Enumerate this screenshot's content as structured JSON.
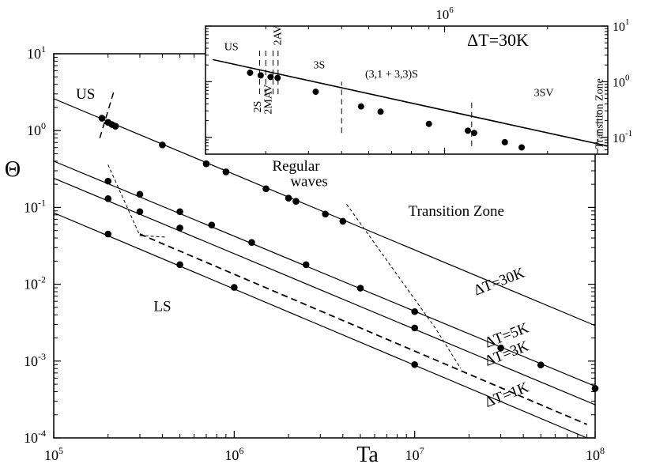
{
  "chart_data": [
    {
      "type": "line",
      "title": "",
      "xlabel": "Ta",
      "ylabel": "Θ",
      "xscale": "log",
      "yscale": "log",
      "xlim": [
        100000,
        100000000
      ],
      "ylim": [
        0.0001,
        10
      ],
      "x_ticks": [
        {
          "value": 100000,
          "base": "10",
          "exp": "5"
        },
        {
          "value": 1000000,
          "base": "10",
          "exp": "6"
        },
        {
          "value": 10000000,
          "base": "10",
          "exp": "7"
        },
        {
          "value": 100000000,
          "base": "10",
          "exp": "8"
        }
      ],
      "y_ticks": [
        {
          "value": 0.0001,
          "base": "10",
          "exp": "-4"
        },
        {
          "value": 0.001,
          "base": "10",
          "exp": "-3"
        },
        {
          "value": 0.01,
          "base": "10",
          "exp": "-2"
        },
        {
          "value": 0.1,
          "base": "10",
          "exp": "-1"
        },
        {
          "value": 1,
          "base": "10",
          "exp": "0"
        },
        {
          "value": 10,
          "base": "10",
          "exp": "1"
        }
      ],
      "grid": false,
      "series": [
        {
          "name": "ΔT=30K",
          "style": "solid",
          "line": [
            [
              100000,
              2.6
            ],
            [
              100000000,
              0.0029
            ]
          ],
          "points": [
            [
              185000,
              1.45
            ],
            [
              200000,
              1.28
            ],
            [
              210000,
              1.2
            ],
            [
              220000,
              1.14
            ],
            [
              400000,
              0.65
            ],
            [
              700000,
              0.37
            ],
            [
              900000,
              0.29
            ],
            [
              1500000,
              0.175
            ],
            [
              2000000,
              0.132
            ],
            [
              2200000,
              0.12
            ],
            [
              3200000,
              0.082
            ],
            [
              4000000,
              0.066
            ]
          ]
        },
        {
          "name": "ΔT=5K",
          "style": "solid",
          "line": [
            [
              100000,
              0.4
            ],
            [
              100000000,
              0.00047
            ]
          ],
          "points": [
            [
              200000,
              0.22
            ],
            [
              300000,
              0.148
            ],
            [
              500000,
              0.088
            ],
            [
              750000,
              0.059
            ],
            [
              1250000,
              0.035
            ],
            [
              2500000,
              0.018
            ],
            [
              5000000,
              0.0089
            ],
            [
              10000000,
              0.0044
            ],
            [
              30000000,
              0.00148
            ],
            [
              100000000,
              0.00044
            ]
          ]
        },
        {
          "name": "ΔT=3K",
          "style": "solid",
          "line": [
            [
              100000,
              0.24
            ],
            [
              100000000,
              0.00027
            ]
          ],
          "points": [
            [
              200000,
              0.13
            ],
            [
              300000,
              0.088
            ],
            [
              500000,
              0.054
            ],
            [
              10000000,
              0.0027
            ],
            [
              50000000,
              0.00089
            ]
          ]
        },
        {
          "name": "",
          "style": "dashed",
          "line": [
            [
              300000,
              0.045
            ],
            [
              90000000,
              0.00015
            ]
          ],
          "points": []
        },
        {
          "name": "ΔT=1K",
          "style": "solid",
          "line": [
            [
              100000,
              0.085
            ],
            [
              90000000,
              0.0001
            ]
          ],
          "points": [
            [
              200000,
              0.045
            ],
            [
              500000,
              0.018
            ],
            [
              1000000,
              0.0091
            ],
            [
              10000000,
              0.0009
            ]
          ]
        }
      ],
      "boundaries": [
        {
          "style": "dashed",
          "points": [
            [
              180000,
              0.8
            ],
            [
              215000,
              3.2
            ]
          ]
        },
        {
          "style": "dashed-fine",
          "points": [
            [
              200000,
              0.36
            ],
            [
              300000,
              0.043
            ],
            [
              300000,
              0.043
            ],
            [
              420000,
              0.041
            ]
          ]
        },
        {
          "style": "dashed-fine",
          "points": [
            [
              4200000,
              0.11
            ],
            [
              13000000,
              0.0027
            ],
            [
              18000000,
              0.0008
            ]
          ]
        }
      ],
      "annotations": [
        {
          "text": "US",
          "x": 150000,
          "y": 2.6
        },
        {
          "text": "LS",
          "x": 400000,
          "y": 0.0045
        },
        {
          "text": "Regular",
          "x": 2200000,
          "y": 0.3
        },
        {
          "text": "waves",
          "x": 2600000,
          "y": 0.19
        },
        {
          "text": "Transition Zone",
          "x": 17000000,
          "y": 0.078
        },
        {
          "text": "ΔT=30K",
          "x": 30000000,
          "y": 0.0095,
          "rotate": -21
        },
        {
          "text": "ΔT=5K",
          "x": 33000000,
          "y": 0.0019,
          "rotate": -21
        },
        {
          "text": "ΔT=3K",
          "x": 33000000,
          "y": 0.0011,
          "rotate": -21
        },
        {
          "text": "ΔT=1K",
          "x": 33000000,
          "y": 0.00032,
          "rotate": -21
        }
      ]
    },
    {
      "type": "line",
      "title": "ΔT=30K",
      "xscale": "log",
      "yscale": "log",
      "xlim": [
        200000,
        3000000
      ],
      "ylim": [
        0.05,
        10
      ],
      "x_ticks": [
        {
          "value": 1000000,
          "base": "10",
          "exp": "6"
        }
      ],
      "y_ticks": [
        {
          "value": 0.1,
          "base": "10",
          "exp": "-1"
        },
        {
          "value": 1,
          "base": "10",
          "exp": "0"
        },
        {
          "value": 10,
          "base": "10",
          "exp": "1"
        }
      ],
      "grid": false,
      "series": [
        {
          "name": "",
          "style": "solid",
          "line": [
            [
              210000,
              2.5
            ],
            [
              3000000,
              0.07
            ]
          ],
          "points": [
            [
              270000,
              1.45
            ],
            [
              290000,
              1.3
            ],
            [
              310000,
              1.22
            ],
            [
              325000,
              1.17
            ],
            [
              420000,
              0.66
            ],
            [
              570000,
              0.36
            ],
            [
              650000,
              0.29
            ],
            [
              900000,
              0.175
            ],
            [
              1170000,
              0.132
            ],
            [
              1220000,
              0.12
            ],
            [
              1500000,
              0.082
            ],
            [
              1680000,
              0.066
            ]
          ]
        }
      ],
      "zone_dividers": [
        {
          "x": 288000,
          "y": [
            0.6,
            4
          ]
        },
        {
          "x": 300000,
          "y": [
            0.6,
            4
          ]
        },
        {
          "x": 315000,
          "y": [
            0.6,
            4
          ]
        },
        {
          "x": 326000,
          "y": [
            0.6,
            4
          ]
        },
        {
          "x": 500000,
          "y": [
            0.12,
            1
          ]
        },
        {
          "x": 1200000,
          "y": [
            0.07,
            0.5
          ]
        },
        {
          "x": 2800000,
          "y": [
            0.05,
            0.3
          ]
        }
      ],
      "region_labels": [
        {
          "text": "US",
          "x": 238000,
          "y": 3.7
        },
        {
          "text": "2S",
          "x": 290000,
          "y": 0.28,
          "rotate": -90
        },
        {
          "text": "2MAV",
          "x": 312000,
          "y": 0.26,
          "rotate": -90
        },
        {
          "text": "2AV",
          "x": 332000,
          "y": 4.5,
          "rotate": -90
        },
        {
          "text": "3S",
          "x": 430000,
          "y": 1.75
        },
        {
          "text": "(3,1 + 3,3)S",
          "x": 700000,
          "y": 1.2
        },
        {
          "text": "3SV",
          "x": 1950000,
          "y": 0.55
        },
        {
          "text": "Transition Zone",
          "x": 2900000,
          "y": 0.062,
          "rotate": -90
        }
      ]
    }
  ]
}
